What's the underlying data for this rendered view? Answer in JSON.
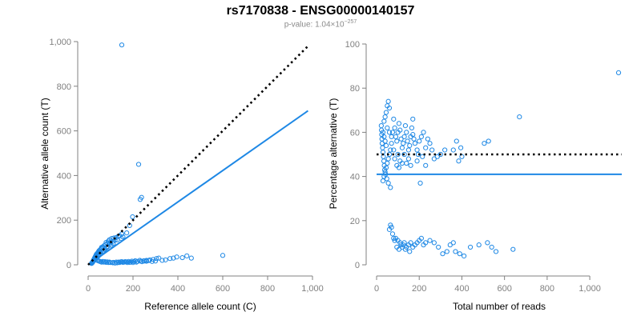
{
  "header": {
    "title": "rs7170838 - ENSG00000140157",
    "pvalue_prefix": "p-value: 1.04×10",
    "pvalue_exp": "−257"
  },
  "colors": {
    "points": "#1e88e5",
    "fit": "#1e88e5",
    "ref": "#000000",
    "axis": "#808080"
  },
  "chart_data": [
    {
      "type": "scatter",
      "title": "",
      "xlabel": "Reference allele count (C)",
      "ylabel": "Alternative allele count (T)",
      "xlim": [
        0,
        1000
      ],
      "ylim": [
        0,
        1000
      ],
      "xticks": [
        0,
        200,
        400,
        600,
        800,
        1000
      ],
      "yticks": [
        0,
        200,
        400,
        600,
        800,
        1000
      ],
      "xtick_labels": [
        "0",
        "200",
        "400",
        "600",
        "800",
        "1,000"
      ],
      "ytick_labels": [
        "0",
        "200",
        "400",
        "600",
        "800",
        "1,000"
      ],
      "reference_line": {
        "x": [
          0,
          980
        ],
        "y": [
          0,
          980
        ],
        "style": "dotted"
      },
      "fit_line": {
        "x": [
          0,
          980
        ],
        "y": [
          0,
          690
        ],
        "style": "solid"
      },
      "points": [
        [
          150,
          985
        ],
        [
          225,
          450
        ],
        [
          232,
          293
        ],
        [
          238,
          302
        ],
        [
          198,
          215
        ],
        [
          185,
          176
        ],
        [
          172,
          143
        ],
        [
          150,
          138
        ],
        [
          140,
          130
        ],
        [
          155,
          125
        ],
        [
          148,
          118
        ],
        [
          130,
          112
        ],
        [
          120,
          110
        ],
        [
          110,
          105
        ],
        [
          100,
          102
        ],
        [
          92,
          98
        ],
        [
          85,
          95
        ],
        [
          78,
          90
        ],
        [
          70,
          85
        ],
        [
          66,
          80
        ],
        [
          62,
          75
        ],
        [
          58,
          72
        ],
        [
          54,
          68
        ],
        [
          50,
          64
        ],
        [
          48,
          62
        ],
        [
          46,
          58
        ],
        [
          44,
          55
        ],
        [
          42,
          52
        ],
        [
          40,
          50
        ],
        [
          38,
          48
        ],
        [
          36,
          45
        ],
        [
          35,
          42
        ],
        [
          34,
          40
        ],
        [
          33,
          38
        ],
        [
          32,
          36
        ],
        [
          31,
          34
        ],
        [
          30,
          32
        ],
        [
          29,
          30
        ],
        [
          28,
          28
        ],
        [
          27,
          26
        ],
        [
          26,
          24
        ],
        [
          25,
          22
        ],
        [
          24,
          20
        ],
        [
          23,
          18
        ],
        [
          22,
          16
        ],
        [
          21,
          14
        ],
        [
          20,
          12
        ],
        [
          19,
          10
        ],
        [
          18,
          9
        ],
        [
          17,
          8
        ],
        [
          16,
          7
        ],
        [
          15,
          6
        ],
        [
          60,
          78
        ],
        [
          80,
          100
        ],
        [
          95,
          112
        ],
        [
          105,
          118
        ],
        [
          115,
          120
        ],
        [
          125,
          122
        ],
        [
          135,
          128
        ],
        [
          88,
          82
        ],
        [
          75,
          70
        ],
        [
          68,
          60
        ],
        [
          64,
          56
        ],
        [
          57,
          50
        ],
        [
          52,
          46
        ],
        [
          47,
          41
        ],
        [
          43,
          37
        ],
        [
          39,
          33
        ],
        [
          37,
          31
        ],
        [
          35,
          29
        ],
        [
          33,
          27
        ],
        [
          31,
          25
        ],
        [
          29,
          23
        ],
        [
          27,
          21
        ],
        [
          25,
          19
        ],
        [
          90,
          106
        ],
        [
          97,
          94
        ],
        [
          102,
          88
        ],
        [
          112,
          96
        ],
        [
          82,
          76
        ],
        [
          72,
          66
        ],
        [
          160,
          12
        ],
        [
          175,
          10
        ],
        [
          190,
          12
        ],
        [
          205,
          14
        ],
        [
          220,
          15
        ],
        [
          235,
          16
        ],
        [
          248,
          18
        ],
        [
          260,
          20
        ],
        [
          275,
          22
        ],
        [
          290,
          24
        ],
        [
          305,
          28
        ],
        [
          315,
          30
        ],
        [
          330,
          20
        ],
        [
          345,
          22
        ],
        [
          365,
          28
        ],
        [
          380,
          30
        ],
        [
          395,
          35
        ],
        [
          420,
          32
        ],
        [
          440,
          40
        ],
        [
          460,
          30
        ],
        [
          600,
          42
        ],
        [
          140,
          10
        ],
        [
          130,
          9
        ],
        [
          120,
          8
        ],
        [
          110,
          9
        ],
        [
          100,
          10
        ],
        [
          90,
          10
        ],
        [
          80,
          11
        ],
        [
          70,
          12
        ],
        [
          60,
          12
        ],
        [
          55,
          14
        ],
        [
          150,
          14
        ],
        [
          165,
          14
        ],
        [
          180,
          15
        ],
        [
          195,
          16
        ],
        [
          210,
          18
        ],
        [
          230,
          20
        ],
        [
          250,
          17
        ],
        [
          270,
          19
        ],
        [
          285,
          15
        ],
        [
          300,
          17
        ],
        [
          125,
          12
        ],
        [
          135,
          12
        ],
        [
          145,
          13
        ],
        [
          155,
          11
        ],
        [
          170,
          13
        ],
        [
          185,
          11
        ],
        [
          200,
          10
        ],
        [
          215,
          12
        ],
        [
          240,
          14
        ],
        [
          260,
          16
        ],
        [
          112,
          11
        ],
        [
          95,
          12
        ],
        [
          85,
          13
        ],
        [
          75,
          14
        ],
        [
          65,
          15
        ],
        [
          50,
          16
        ],
        [
          45,
          18
        ],
        [
          40,
          20
        ]
      ]
    },
    {
      "type": "scatter",
      "title": "",
      "xlabel": "Total number of reads",
      "ylabel": "Percentage alternative (T)",
      "xlim": [
        0,
        1150
      ],
      "ylim": [
        0,
        100
      ],
      "xticks": [
        0,
        200,
        400,
        600,
        800,
        1000
      ],
      "yticks": [
        0,
        20,
        40,
        60,
        80,
        100
      ],
      "xtick_labels": [
        "0",
        "200",
        "400",
        "600",
        "800",
        "1,000"
      ],
      "ytick_labels": [
        "0",
        "20",
        "40",
        "60",
        "80",
        "100"
      ],
      "reference_line": {
        "x": [
          0,
          1150
        ],
        "y": [
          50,
          50
        ],
        "style": "dotted"
      },
      "fit_line": {
        "x": [
          0,
          1150
        ],
        "y": [
          41,
          41
        ],
        "style": "solid"
      },
      "points": [
        [
          1135,
          87
        ],
        [
          670,
          67
        ],
        [
          525,
          56
        ],
        [
          505,
          55
        ],
        [
          375,
          56
        ],
        [
          395,
          53
        ],
        [
          400,
          49
        ],
        [
          385,
          47
        ],
        [
          360,
          52
        ],
        [
          320,
          52
        ],
        [
          300,
          50
        ],
        [
          270,
          48
        ],
        [
          260,
          52
        ],
        [
          250,
          55
        ],
        [
          240,
          57
        ],
        [
          230,
          53
        ],
        [
          220,
          60
        ],
        [
          210,
          58
        ],
        [
          200,
          56
        ],
        [
          195,
          50
        ],
        [
          190,
          52
        ],
        [
          180,
          55
        ],
        [
          175,
          57
        ],
        [
          170,
          59
        ],
        [
          165,
          62
        ],
        [
          160,
          58
        ],
        [
          155,
          54
        ],
        [
          150,
          52
        ],
        [
          145,
          56
        ],
        [
          140,
          60
        ],
        [
          135,
          63
        ],
        [
          130,
          58
        ],
        [
          125,
          55
        ],
        [
          120,
          53
        ],
        [
          115,
          57
        ],
        [
          110,
          61
        ],
        [
          105,
          64
        ],
        [
          100,
          60
        ],
        [
          95,
          56
        ],
        [
          90,
          58
        ],
        [
          85,
          62
        ],
        [
          80,
          66
        ],
        [
          75,
          60
        ],
        [
          70,
          55
        ],
        [
          65,
          52
        ],
        [
          60,
          50
        ],
        [
          55,
          48
        ],
        [
          50,
          46
        ],
        [
          45,
          44
        ],
        [
          40,
          42
        ],
        [
          35,
          40
        ],
        [
          30,
          38
        ],
        [
          65,
          35
        ],
        [
          55,
          37
        ],
        [
          48,
          39
        ],
        [
          42,
          41
        ],
        [
          38,
          43
        ],
        [
          36,
          45
        ],
        [
          34,
          47
        ],
        [
          32,
          49
        ],
        [
          30,
          51
        ],
        [
          28,
          53
        ],
        [
          26,
          55
        ],
        [
          25,
          57
        ],
        [
          24,
          59
        ],
        [
          23,
          61
        ],
        [
          22,
          63
        ],
        [
          35,
          65
        ],
        [
          40,
          67
        ],
        [
          45,
          69
        ],
        [
          50,
          72
        ],
        [
          55,
          74
        ],
        [
          60,
          71
        ],
        [
          170,
          66
        ],
        [
          215,
          49
        ],
        [
          205,
          37
        ],
        [
          285,
          49
        ],
        [
          150,
          48
        ],
        [
          120,
          46
        ],
        [
          100,
          50
        ],
        [
          80,
          52
        ],
        [
          70,
          58
        ],
        [
          60,
          60
        ],
        [
          50,
          62
        ],
        [
          45,
          54
        ],
        [
          40,
          56
        ],
        [
          35,
          58
        ],
        [
          30,
          60
        ],
        [
          85,
          48
        ],
        [
          95,
          45
        ],
        [
          105,
          44
        ],
        [
          110,
          47
        ],
        [
          130,
          50
        ],
        [
          140,
          46
        ],
        [
          160,
          45
        ],
        [
          190,
          47
        ],
        [
          230,
          45
        ],
        [
          65,
          18
        ],
        [
          70,
          17
        ],
        [
          60,
          16
        ],
        [
          75,
          14
        ],
        [
          80,
          12
        ],
        [
          85,
          11
        ],
        [
          90,
          12
        ],
        [
          100,
          11
        ],
        [
          110,
          10
        ],
        [
          115,
          9
        ],
        [
          120,
          8
        ],
        [
          125,
          9
        ],
        [
          130,
          10
        ],
        [
          140,
          8
        ],
        [
          150,
          9
        ],
        [
          160,
          10
        ],
        [
          170,
          8
        ],
        [
          180,
          9
        ],
        [
          190,
          10
        ],
        [
          200,
          11
        ],
        [
          210,
          12
        ],
        [
          220,
          9
        ],
        [
          230,
          10
        ],
        [
          250,
          11
        ],
        [
          270,
          10
        ],
        [
          290,
          8
        ],
        [
          310,
          5
        ],
        [
          330,
          6
        ],
        [
          345,
          9
        ],
        [
          360,
          10
        ],
        [
          370,
          6
        ],
        [
          390,
          5
        ],
        [
          410,
          4
        ],
        [
          440,
          8
        ],
        [
          480,
          9
        ],
        [
          520,
          10
        ],
        [
          540,
          8
        ],
        [
          560,
          6
        ],
        [
          640,
          7
        ],
        [
          95,
          8
        ],
        [
          105,
          7
        ],
        [
          135,
          7
        ],
        [
          155,
          6
        ]
      ]
    }
  ]
}
